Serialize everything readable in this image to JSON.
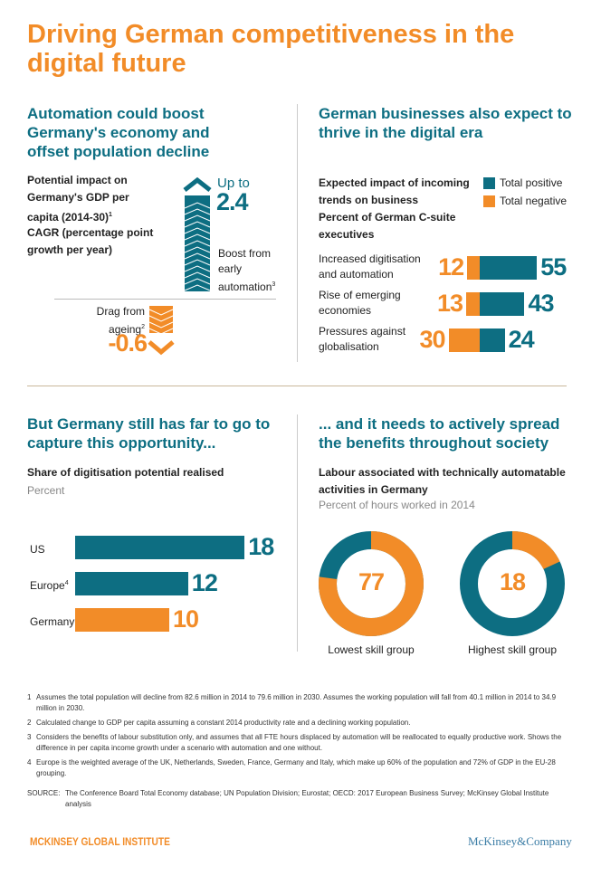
{
  "title": "Driving German competitiveness in the digital future",
  "colors": {
    "teal": "#0d6e82",
    "orange": "#f28c28"
  },
  "sections": {
    "automation": {
      "heading": "Automation could boost Germany's economy and offset population decline",
      "subtitle": "Potential impact on Germany's GDP per capita (2014-30)",
      "subtitle_sup": "1",
      "unit": "CAGR (percentage point growth per year)",
      "boost_prefix": "Up to",
      "boost_value": "2.4",
      "boost_label": "Boost from early automation",
      "boost_sup": "3",
      "drag_label": "Drag from ageing",
      "drag_sup": "2",
      "drag_value": "-0.6"
    },
    "businesses": {
      "heading": "German businesses also expect to thrive in the digital era",
      "subtitle": "Expected impact of incoming trends on business",
      "unit": "Percent of German C-suite executives"
    },
    "potential": {
      "heading": "But Germany still has far to go to capture this opportunity...",
      "subtitle": "Share of digitisation potential realised",
      "unit": "Percent"
    },
    "society": {
      "heading": "... and it needs to actively spread the benefits throughout society",
      "subtitle": "Labour associated with technically automatable activities in Germany",
      "unit": "Percent of hours worked in 2014"
    }
  },
  "chart_data": [
    {
      "type": "bar",
      "title": "Potential impact on Germany's GDP per capita (2014-30)",
      "ylabel": "CAGR (percentage point growth per year)",
      "categories": [
        "Boost from early automation",
        "Drag from ageing"
      ],
      "values": [
        2.4,
        -0.6
      ]
    },
    {
      "type": "bar",
      "orientation": "horizontal",
      "stacked": "diverging",
      "legend": "top-right",
      "categories": [
        "Increased digitisation and automation",
        "Rise of emerging economies",
        "Pressures against globalisation"
      ],
      "series": [
        {
          "name": "Total positive",
          "values": [
            55,
            43,
            24
          ],
          "color": "#0d6e82"
        },
        {
          "name": "Total negative",
          "values": [
            12,
            13,
            30
          ],
          "color": "#f28c28"
        }
      ]
    },
    {
      "type": "bar",
      "orientation": "horizontal",
      "categories": [
        "US",
        "Europe",
        "Germany"
      ],
      "category_sups": [
        "",
        "4",
        ""
      ],
      "values": [
        18,
        12,
        10
      ],
      "colors": [
        "#0d6e82",
        "#0d6e82",
        "#f28c28"
      ]
    },
    {
      "type": "pie",
      "donut": true,
      "charts": [
        {
          "label": "Lowest skill group",
          "value": 77
        },
        {
          "label": "Highest skill group",
          "value": 18
        }
      ]
    }
  ],
  "footnotes": [
    {
      "n": "1",
      "text": "Assumes the total population will decline from 82.6 million in 2014 to 79.6 million in 2030. Assumes the working population will fall from 40.1 million in 2014 to 34.9 million in 2030."
    },
    {
      "n": "2",
      "text": "Calculated change to GDP per capita assuming a constant 2014 productivity rate and a declining working population."
    },
    {
      "n": "3",
      "text": "Considers the benefits of labour substitution only, and assumes that all FTE hours displaced by automation will be reallocated to equally productive work. Shows the difference in per capita income growth under a scenario with automation and one without."
    },
    {
      "n": "4",
      "text": "Europe is the weighted average of the UK, Netherlands, Sweden, France, Germany and Italy, which make up 60% of the population and 72% of GDP in the EU-28 grouping."
    }
  ],
  "source_label": "SOURCE:",
  "source": "The Conference Board Total Economy database; UN Population Division; Eurostat; OECD: 2017 European Business Survey; McKinsey Global Institute analysis",
  "logo_left": "MCKINSEY GLOBAL INSTITUTE",
  "logo_right": "McKinsey&Company"
}
